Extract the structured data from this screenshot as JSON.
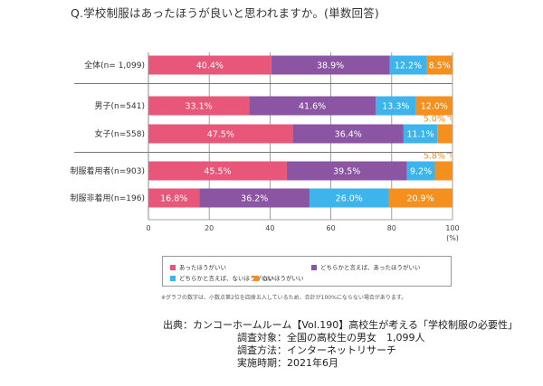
{
  "title": "Q.学校制服はあったほうが良いと思われますか。(単数回答)",
  "chart_data": {
    "type": "bar",
    "orientation": "horizontal-stacked-100",
    "title": "Q.学校制服はあったほうが良いと思われますか。(単数回答)",
    "xlabel": "(%)",
    "ylabel": "",
    "xlim": [
      0,
      100
    ],
    "x_ticks": [
      "0",
      "20",
      "40",
      "60",
      "80",
      "100"
    ],
    "x_unit": "(%)",
    "grid": true,
    "legend_position": "bottom",
    "categories": [
      "全体(n= 1,099)",
      "男子(n=541)",
      "女子(n=558)",
      "制服着用者(n=903)",
      "制服非着用(n=196)"
    ],
    "group_separators_after": [
      0,
      2
    ],
    "series": [
      {
        "name": "あったほうがいい",
        "color": "#e8577a",
        "values": [
          40.4,
          33.1,
          47.5,
          45.5,
          16.8
        ]
      },
      {
        "name": "どちらかと言えば、あったほうがいい",
        "color": "#8b55a3",
        "values": [
          38.9,
          41.6,
          36.4,
          39.5,
          36.2
        ]
      },
      {
        "name": "どちらかと言えば、ないほうがいい",
        "color": "#3db4ec",
        "values": [
          12.2,
          13.3,
          11.1,
          9.2,
          26.0
        ]
      },
      {
        "name": "ないほうがいい",
        "color": "#f5901e",
        "values": [
          8.5,
          12.0,
          5.0,
          5.8,
          20.9
        ]
      }
    ],
    "callout_rows": [
      2,
      3
    ]
  },
  "note": "※グラフの数字は、小数点第2位を四捨五入しているため、合計が100%にならない場合があります。",
  "source": {
    "line1": "出典：カンコーホームルーム【Vol.190】高校生が考える「学校制服の必要性」",
    "line2": "調査対象：全国の高校生の男女　1,099人",
    "line3": "調査方法：インターネットリサーチ",
    "line4": "実施時期：2021年6月"
  }
}
